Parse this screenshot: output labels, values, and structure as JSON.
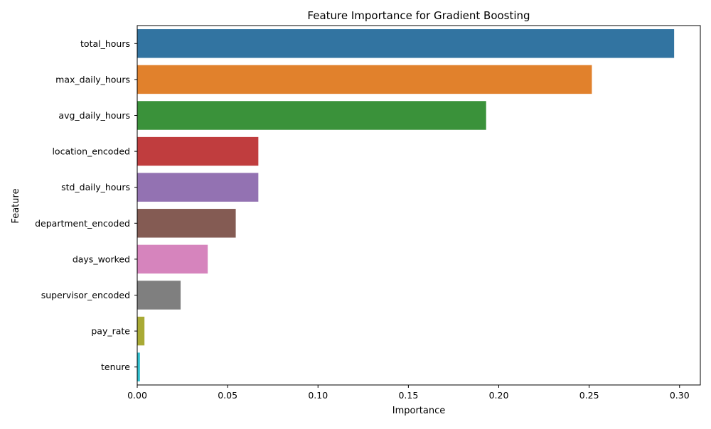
{
  "chart_data": {
    "type": "bar",
    "orientation": "horizontal",
    "title": "Feature Importance for Gradient Boosting",
    "xlabel": "Importance",
    "ylabel": "Feature",
    "xlim": [
      0,
      0.3115
    ],
    "xticks": [
      "0.00",
      "0.05",
      "0.10",
      "0.15",
      "0.20",
      "0.25",
      "0.30"
    ],
    "grid": false,
    "legend": "none",
    "categories": [
      "total_hours",
      "max_daily_hours",
      "avg_daily_hours",
      "location_encoded",
      "std_daily_hours",
      "department_encoded",
      "days_worked",
      "supervisor_encoded",
      "pay_rate",
      "tenure"
    ],
    "values": [
      0.297,
      0.2515,
      0.193,
      0.067,
      0.067,
      0.0545,
      0.039,
      0.024,
      0.004,
      0.0015
    ],
    "colors": [
      "#3274a1",
      "#e1812c",
      "#3a923a",
      "#c03d3e",
      "#9372b2",
      "#845b53",
      "#d684bd",
      "#7f7f7f",
      "#a9aa35",
      "#2ebdcd"
    ]
  }
}
